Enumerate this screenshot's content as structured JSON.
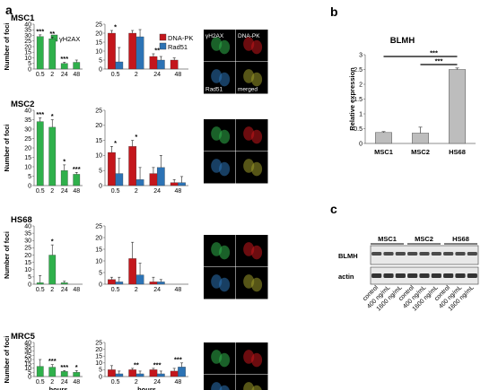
{
  "panel_labels": {
    "a": "a",
    "b": "b",
    "c": "c"
  },
  "axis_labels": {
    "foci": "Number of foci",
    "hours": "hours",
    "relexp": "Relative expression"
  },
  "legend": {
    "gh2ax": "γH2AX",
    "dnapk": "DNA-PK",
    "rad51": "Rad51"
  },
  "micrograph_labels": [
    "γH2AX",
    "DNA-PK",
    "Rad51",
    "merged"
  ],
  "colors": {
    "green": "#2fb04b",
    "red": "#c4161c",
    "blue": "#2c73b5",
    "grey": "#bdbdbd"
  },
  "chart_data": [
    {
      "id": "msc1-gh2ax",
      "type": "bar",
      "title": "MSC1",
      "ylabel": "Number of foci",
      "xlabel": "",
      "categories": [
        "0.5",
        "2",
        "24",
        "48"
      ],
      "ylim": [
        0,
        40
      ],
      "yticks": [
        0,
        5,
        10,
        15,
        20,
        25,
        30,
        35,
        40
      ],
      "series": [
        {
          "name": "γH2AX",
          "values": [
            29,
            27,
            5,
            6
          ],
          "errors": [
            1.5,
            1.5,
            1,
            2
          ]
        }
      ],
      "stars": [
        "***",
        "**",
        "***",
        ""
      ]
    },
    {
      "id": "msc1-pk",
      "type": "bar",
      "categories": [
        "0.5",
        "2",
        "24",
        "48"
      ],
      "ylim": [
        0,
        25
      ],
      "yticks": [
        0,
        5,
        10,
        15,
        20,
        25
      ],
      "series": [
        {
          "name": "DNA-PK",
          "values": [
            20,
            20,
            7,
            5
          ],
          "errors": [
            1.5,
            1.5,
            1.5,
            1.2
          ]
        },
        {
          "name": "Rad51",
          "values": [
            4,
            18,
            5,
            0
          ],
          "errors": [
            8,
            4,
            2,
            0
          ]
        }
      ],
      "stars": [
        "*",
        "",
        "**",
        ""
      ]
    },
    {
      "id": "msc2-gh2ax",
      "type": "bar",
      "title": "MSC2",
      "ylabel": "Number of foci",
      "xlabel": "",
      "categories": [
        "0.5",
        "2",
        "24",
        "48"
      ],
      "ylim": [
        0,
        40
      ],
      "yticks": [
        0,
        5,
        10,
        15,
        20,
        25,
        30,
        35,
        40
      ],
      "series": [
        {
          "name": "γH2AX",
          "values": [
            34,
            31,
            8,
            6
          ],
          "errors": [
            2,
            4,
            3,
            1
          ]
        }
      ],
      "stars": [
        "***",
        "*",
        "*",
        "***"
      ]
    },
    {
      "id": "msc2-pk",
      "type": "bar",
      "categories": [
        "0.5",
        "2",
        "24",
        "48"
      ],
      "ylim": [
        0,
        25
      ],
      "yticks": [
        0,
        5,
        10,
        15,
        20,
        25
      ],
      "series": [
        {
          "name": "DNA-PK",
          "values": [
            11,
            13,
            4,
            1
          ],
          "errors": [
            2,
            2,
            2,
            1
          ]
        },
        {
          "name": "Rad51",
          "values": [
            4,
            2,
            6,
            1
          ],
          "errors": [
            5,
            4,
            4,
            2
          ]
        }
      ],
      "stars": [
        "*",
        "*",
        "",
        ""
      ]
    },
    {
      "id": "hs68-gh2ax",
      "type": "bar",
      "title": "HS68",
      "ylabel": "Number of foci",
      "xlabel": "",
      "categories": [
        "0.5",
        "2",
        "24",
        "48"
      ],
      "ylim": [
        0,
        40
      ],
      "yticks": [
        0,
        5,
        10,
        15,
        20,
        25,
        30,
        35,
        40
      ],
      "series": [
        {
          "name": "γH2AX",
          "values": [
            1,
            20,
            1,
            0
          ],
          "errors": [
            5,
            7,
            1,
            0
          ]
        }
      ],
      "stars": [
        "",
        "*",
        "",
        ""
      ]
    },
    {
      "id": "hs68-pk",
      "type": "bar",
      "categories": [
        "0.5",
        "2",
        "24",
        "48"
      ],
      "ylim": [
        0,
        25
      ],
      "yticks": [
        0,
        5,
        10,
        15,
        20,
        25
      ],
      "series": [
        {
          "name": "DNA-PK",
          "values": [
            2,
            11,
            1,
            0
          ],
          "errors": [
            1,
            7,
            2,
            0
          ]
        },
        {
          "name": "Rad51",
          "values": [
            1,
            4,
            1,
            0
          ],
          "errors": [
            2,
            5,
            1,
            0
          ]
        }
      ],
      "stars": [
        "",
        "",
        "",
        ""
      ]
    },
    {
      "id": "mrc5-gh2ax",
      "type": "bar",
      "title": "MRC5",
      "ylabel": "Number of foci",
      "xlabel": "hours",
      "categories": [
        "0.5",
        "2",
        "24",
        "48"
      ],
      "ylim": [
        0,
        40
      ],
      "yticks": [
        0,
        5,
        10,
        15,
        20,
        25,
        30,
        35,
        40
      ],
      "series": [
        {
          "name": "γH2AX",
          "values": [
            12,
            11,
            6,
            5
          ],
          "errors": [
            8,
            3,
            1,
            2
          ]
        }
      ],
      "stars": [
        "",
        "***",
        "***",
        "*"
      ]
    },
    {
      "id": "mrc5-pk",
      "type": "bar",
      "xlabel": "hours",
      "categories": [
        "0.5",
        "2",
        "24",
        "48"
      ],
      "ylim": [
        0,
        25
      ],
      "yticks": [
        0,
        5,
        10,
        15,
        20,
        25
      ],
      "series": [
        {
          "name": "DNA-PK",
          "values": [
            5,
            5,
            5,
            4
          ],
          "errors": [
            3,
            1,
            1,
            2
          ]
        },
        {
          "name": "Rad51",
          "values": [
            2,
            2,
            2,
            7
          ],
          "errors": [
            2,
            2,
            2,
            3
          ]
        }
      ],
      "stars": [
        "",
        "**",
        "***",
        "***"
      ]
    },
    {
      "id": "blmh-expression",
      "type": "bar",
      "title": "BLMH",
      "ylabel": "Relative expression",
      "categories": [
        "MSC1",
        "MSC2",
        "HS68"
      ],
      "values": [
        0.37,
        0.35,
        2.5
      ],
      "errors": [
        0.03,
        0.2,
        0.05
      ],
      "ylim": [
        0,
        3
      ],
      "yticks": [
        0,
        0.5,
        1,
        1.5,
        2,
        2.5,
        3
      ],
      "significance": [
        {
          "from": "MSC1",
          "to": "HS68",
          "label": "***"
        },
        {
          "from": "MSC2",
          "to": "HS68",
          "label": "***"
        }
      ]
    }
  ],
  "western_blot": {
    "groups": [
      "MSC1",
      "MSC2",
      "HS68"
    ],
    "rows": [
      "BLMH",
      "actin"
    ],
    "lanes": [
      "control",
      "400 ng/mL",
      "1600 ng/mL",
      "control",
      "400 ng/mL",
      "1600 ng/mL",
      "control",
      "400 ng/mL",
      "1600 ng/mL"
    ]
  }
}
